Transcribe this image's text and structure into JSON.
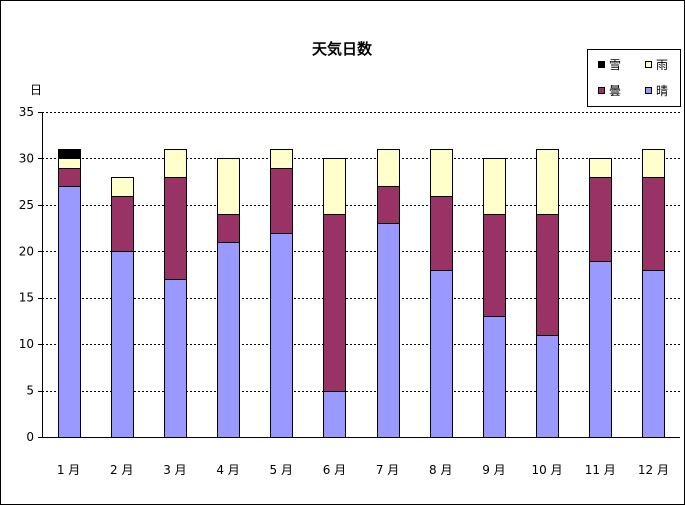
{
  "chart_data": {
    "type": "bar",
    "stacked": true,
    "title": "天気日数",
    "ylabel": "日",
    "xlabel": "",
    "ylim": [
      0,
      35
    ],
    "yticks": [
      0,
      5,
      10,
      15,
      20,
      25,
      30,
      35
    ],
    "grid": "horizontal-dashed",
    "legend_position": "top-right",
    "categories": [
      "1 月",
      "2 月",
      "3 月",
      "4 月",
      "5 月",
      "6 月",
      "7 月",
      "8 月",
      "9 月",
      "10 月",
      "11 月",
      "12 月"
    ],
    "series": [
      {
        "name": "晴",
        "color": "#9999ff",
        "values": [
          27,
          20,
          17,
          21,
          22,
          5,
          23,
          18,
          13,
          11,
          19,
          18
        ]
      },
      {
        "name": "曇",
        "color": "#993366",
        "values": [
          2,
          6,
          11,
          3,
          7,
          19,
          4,
          8,
          11,
          13,
          9,
          10
        ]
      },
      {
        "name": "雨",
        "color": "#ffffcc",
        "values": [
          1,
          2,
          3,
          6,
          2,
          6,
          4,
          5,
          6,
          7,
          2,
          3
        ]
      },
      {
        "name": "雪",
        "color": "#000000",
        "values": [
          1,
          0,
          0,
          0,
          0,
          0,
          0,
          0,
          0,
          0,
          0,
          0
        ]
      }
    ]
  }
}
